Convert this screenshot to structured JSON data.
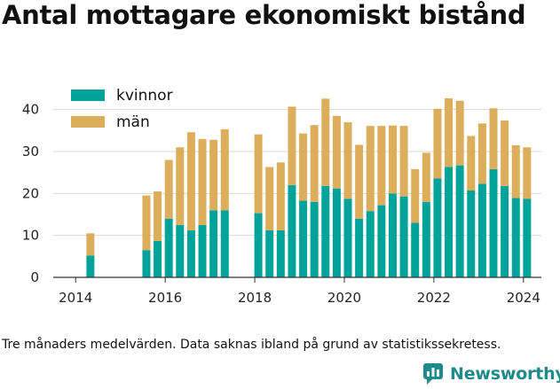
{
  "title": "Antal mottagare ekonomiskt bistånd",
  "footnote": "Tre månaders medelvärden. Data saknas ibland på grund av statistikssekretess.",
  "brand": {
    "name": "Newsworthy",
    "icon": "newsworthy-logo-icon"
  },
  "colors": {
    "kvinnor": "#00a39a",
    "man": "#dcad5b",
    "grid": "#d9d9d9",
    "axis": "#333333"
  },
  "chart_data": {
    "type": "bar",
    "stacked": true,
    "title": "Antal mottagare ekonomiskt bistånd",
    "xlabel": "",
    "ylabel": "",
    "ylim": [
      0,
      45
    ],
    "yticks": [
      0,
      10,
      20,
      30,
      40
    ],
    "xlim": [
      2013.5,
      2024.4
    ],
    "xticks": [
      2014,
      2016,
      2018,
      2020,
      2022,
      2024
    ],
    "grid": true,
    "legend": "top-left",
    "x": [
      2014.33,
      2015.58,
      2015.83,
      2016.08,
      2016.33,
      2016.58,
      2016.83,
      2017.08,
      2017.33,
      2018.08,
      2018.33,
      2018.58,
      2018.83,
      2019.08,
      2019.33,
      2019.58,
      2019.83,
      2020.08,
      2020.33,
      2020.58,
      2020.83,
      2021.08,
      2021.33,
      2021.58,
      2021.83,
      2022.08,
      2022.33,
      2022.58,
      2022.83,
      2023.08,
      2023.33,
      2023.58,
      2023.83,
      2024.08
    ],
    "series": [
      {
        "name": "kvinnor",
        "values": [
          5.2,
          6.5,
          8.7,
          14.0,
          12.5,
          11.2,
          12.5,
          16.0,
          16.0,
          15.3,
          11.2,
          11.2,
          22.0,
          18.3,
          18.0,
          21.8,
          21.2,
          18.7,
          14.0,
          15.8,
          17.2,
          20.0,
          19.3,
          13.0,
          18.0,
          23.6,
          26.3,
          26.7,
          20.7,
          22.3,
          25.8,
          21.8,
          18.9,
          18.7
        ]
      },
      {
        "name": "män",
        "values": [
          5.3,
          13.0,
          11.8,
          14.0,
          18.5,
          23.4,
          20.5,
          16.8,
          19.3,
          18.8,
          15.1,
          16.2,
          18.7,
          16.0,
          18.3,
          20.8,
          17.3,
          18.3,
          17.6,
          20.3,
          18.9,
          16.2,
          16.8,
          12.8,
          11.7,
          16.6,
          16.4,
          15.4,
          13.0,
          14.4,
          14.5,
          15.6,
          12.6,
          12.3
        ]
      }
    ]
  }
}
